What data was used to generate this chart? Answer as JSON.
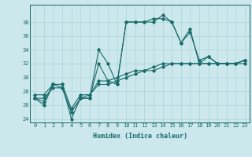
{
  "xlabel": "Humidex (Indice chaleur)",
  "bg_color": "#cce8ec",
  "grid_color": "#aad4d8",
  "line_color": "#1a6b6b",
  "xlim": [
    -0.5,
    23.5
  ],
  "ylim": [
    23.5,
    40.5
  ],
  "yticks": [
    24,
    26,
    28,
    30,
    32,
    34,
    36,
    38
  ],
  "xticks": [
    0,
    1,
    2,
    3,
    4,
    5,
    6,
    7,
    8,
    9,
    10,
    11,
    12,
    13,
    14,
    15,
    16,
    17,
    18,
    19,
    20,
    21,
    22,
    23
  ],
  "series_main": [
    27,
    26,
    29,
    29,
    24,
    27,
    27,
    34,
    32,
    29,
    38,
    38,
    38,
    38,
    39,
    38,
    35,
    37,
    32,
    33,
    32,
    32,
    32,
    32.5
  ],
  "series_2": [
    27,
    26.5,
    29,
    28.5,
    25,
    27,
    27,
    32,
    29.5,
    29,
    38,
    38,
    38,
    38.5,
    38.5,
    38,
    35,
    36.5,
    32.5,
    33,
    32,
    32,
    32,
    32.5
  ],
  "series_3": [
    27.5,
    27.5,
    29,
    29,
    25.5,
    27.5,
    27.5,
    29.5,
    29.5,
    30,
    30.5,
    31,
    31,
    31.5,
    32,
    32,
    32,
    32,
    32,
    32,
    32,
    32,
    32,
    32.5
  ],
  "series_4": [
    27,
    27,
    28.5,
    28.5,
    25,
    27,
    27.5,
    29,
    29,
    29.5,
    30,
    30.5,
    31,
    31,
    31.5,
    32,
    32,
    32,
    32,
    32,
    32,
    32,
    32,
    32
  ]
}
